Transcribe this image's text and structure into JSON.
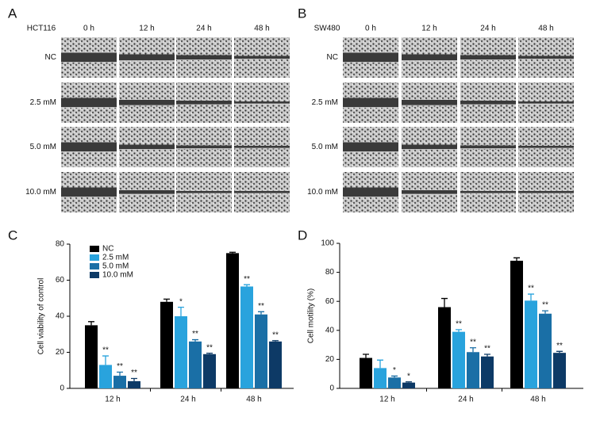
{
  "panels": [
    {
      "label": "A",
      "cell_line": "HCT116",
      "times": [
        "0 h",
        "12 h",
        "24 h",
        "48 h"
      ],
      "conditions": [
        "NC",
        "2.5 mM",
        "5.0 mM",
        "10.0 mM"
      ]
    },
    {
      "label": "B",
      "cell_line": "SW480",
      "times": [
        "0 h",
        "12 h",
        "24 h",
        "48 h"
      ],
      "conditions": [
        "NC",
        "2.5 mM",
        "5.0 mM",
        "10.0 mM"
      ]
    }
  ],
  "chart_data": [
    {
      "type": "bar",
      "panel_label": "C",
      "y_label": "Cell viability of control",
      "categories": [
        "12 h",
        "24 h",
        "48 h"
      ],
      "ylim": [
        0,
        80
      ],
      "yticks": [
        0,
        20,
        40,
        60,
        80
      ],
      "legend": "upper left",
      "series": [
        {
          "name": "NC",
          "color": "#000000",
          "values": [
            35,
            48,
            75
          ],
          "errors": [
            2,
            1.5,
            0.5
          ]
        },
        {
          "name": "2.5 mM",
          "color": "#29a3dd",
          "values": [
            13,
            40,
            56.5
          ],
          "errors": [
            5,
            5,
            1
          ],
          "significance": [
            "**",
            "*",
            "**"
          ]
        },
        {
          "name": "5.0 mM",
          "color": "#1a6fa6",
          "values": [
            7,
            26,
            41
          ],
          "errors": [
            2,
            1,
            1.5
          ],
          "significance": [
            "**",
            "**",
            "**"
          ]
        },
        {
          "name": "10.0 mM",
          "color": "#0d3a66",
          "values": [
            4,
            19,
            26
          ],
          "errors": [
            1.5,
            0.5,
            0.5
          ],
          "significance": [
            "**",
            "**",
            "**"
          ]
        }
      ]
    },
    {
      "type": "bar",
      "panel_label": "D",
      "y_label": "Cell motility (%)",
      "categories": [
        "12 h",
        "24 h",
        "48 h"
      ],
      "ylim": [
        0,
        100
      ],
      "yticks": [
        0,
        20,
        40,
        60,
        80,
        100
      ],
      "series": [
        {
          "name": "NC",
          "color": "#000000",
          "values": [
            21,
            56,
            88
          ],
          "errors": [
            2.5,
            6,
            2
          ]
        },
        {
          "name": "2.5 mM",
          "color": "#29a3dd",
          "values": [
            14,
            39,
            60.5
          ],
          "errors": [
            5.5,
            1.5,
            4.5
          ],
          "significance": [
            null,
            "**",
            "**"
          ]
        },
        {
          "name": "5.0 mM",
          "color": "#1a6fa6",
          "values": [
            7.5,
            25,
            51.5
          ],
          "errors": [
            1,
            3,
            2
          ],
          "significance": [
            "*",
            "**",
            "**"
          ]
        },
        {
          "name": "10.0 mM",
          "color": "#0d3a66",
          "values": [
            4,
            22,
            24.5
          ],
          "errors": [
            0.5,
            1.5,
            1
          ],
          "significance": [
            "*",
            "**",
            "**"
          ]
        }
      ]
    }
  ]
}
